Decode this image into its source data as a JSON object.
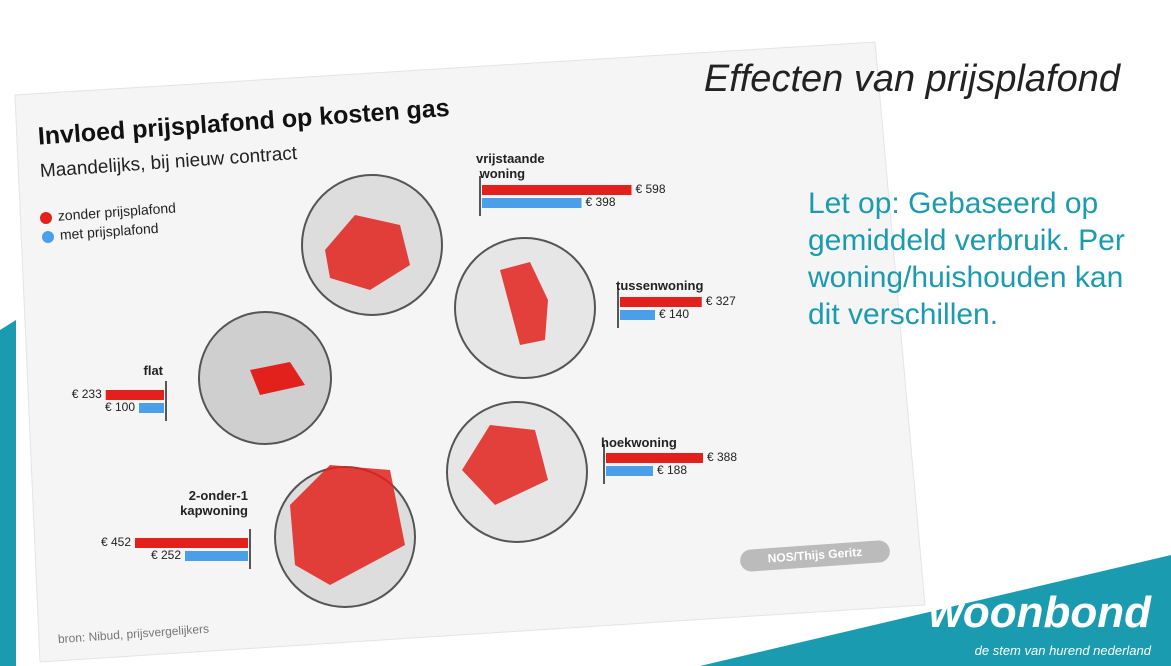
{
  "slide": {
    "title": "Effecten van prijsplafond",
    "note": "Let op: Gebaseerd op gemiddeld verbruik. Per woning/huishouden kan dit verschillen.",
    "logo": "woonbond",
    "tagline": "de stem van hurend nederland"
  },
  "chart_data": {
    "type": "bar",
    "title": "Invloed prijsplafond op kosten gas",
    "subtitle": "Maandelijks, bij nieuw contract",
    "source": "bron: Nibud, prijsvergelijkers",
    "credit": "NOS/Thijs Geritz",
    "categories": [
      "vrijstaande woning",
      "tussenwoning",
      "flat",
      "hoekwoning",
      "2-onder-1 kapwoning"
    ],
    "series": [
      {
        "name": "zonder prijsplafond",
        "color": "#e2211c",
        "values": [
          598,
          327,
          233,
          388,
          452
        ],
        "value_labels": [
          "€ 598",
          "€ 327",
          "€ 233",
          "€ 388",
          "€ 452"
        ]
      },
      {
        "name": "met prijsplafond",
        "color": "#4a9fe8",
        "values": [
          398,
          140,
          100,
          188,
          252
        ],
        "value_labels": [
          "€ 398",
          "€ 140",
          "€ 100",
          "€ 188",
          "€ 252"
        ]
      }
    ]
  }
}
